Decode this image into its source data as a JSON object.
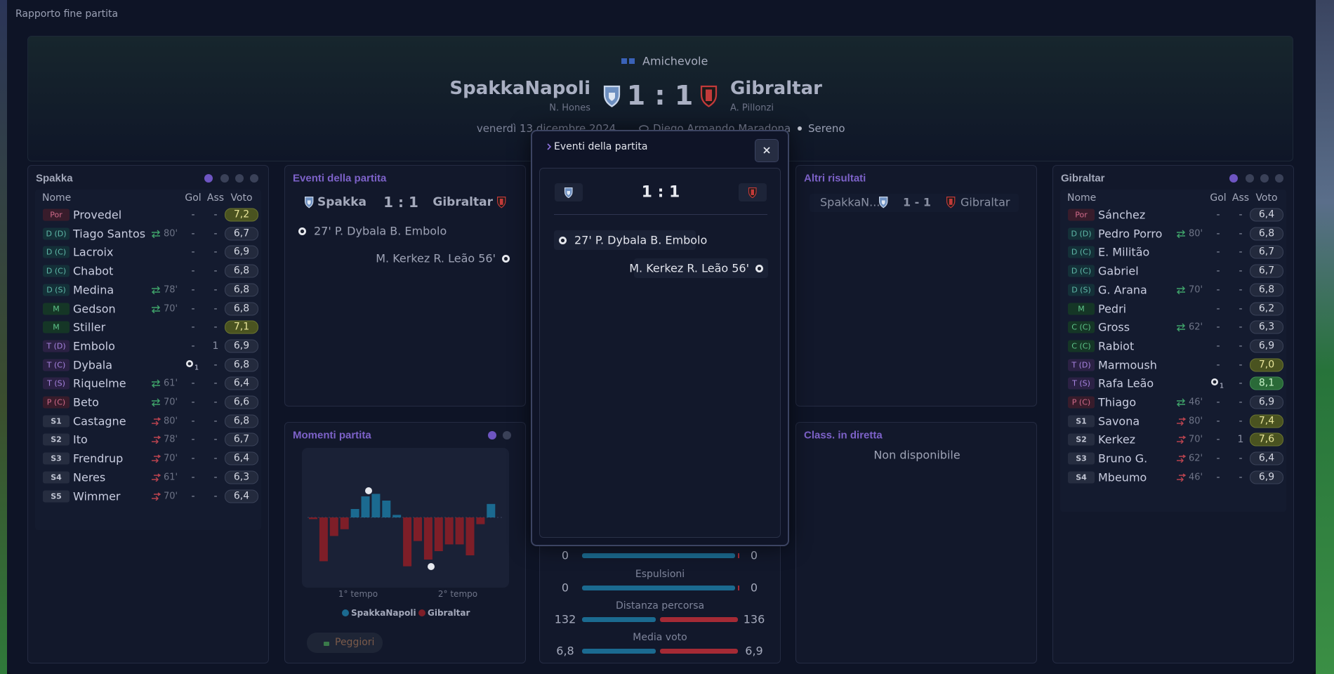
{
  "header": {
    "title": "Rapporto fine partita"
  },
  "match": {
    "competition": "Amichevole",
    "score": "1 : 1",
    "score_short": "1 - 1",
    "date": "venerdì 13 dicembre 2024",
    "stadium": "Diego Armando Maradona",
    "weather": "Sereno",
    "home": {
      "name": "SpakkaNapoli",
      "manager": "N. Hones",
      "short": "Spakka",
      "abbr": "SpakkaN..."
    },
    "away": {
      "name": "Gibraltar",
      "manager": "A. Pillonzi"
    }
  },
  "lineups": {
    "columns": [
      "Nome",
      "Gol",
      "Ass",
      "Voto"
    ],
    "teams": [
      {
        "title": "Spakka",
        "players": [
          {
            "pos": "Por",
            "name": "Provedel",
            "gol": "-",
            "ass": "-",
            "voto": "7,2"
          },
          {
            "pos": "D (D)",
            "name": "Tiago Santos",
            "sub": "80'",
            "gol": "-",
            "ass": "-",
            "voto": "6,7"
          },
          {
            "pos": "D (C)",
            "name": "Lacroix",
            "gol": "-",
            "ass": "-",
            "voto": "6,9"
          },
          {
            "pos": "D (C)",
            "name": "Chabot",
            "gol": "-",
            "ass": "-",
            "voto": "6,8"
          },
          {
            "pos": "D (S)",
            "name": "Medina",
            "sub": "78'",
            "gol": "-",
            "ass": "-",
            "voto": "6,8"
          },
          {
            "pos": "M",
            "name": "Gedson",
            "sub": "70'",
            "gol": "-",
            "ass": "-",
            "voto": "6,8"
          },
          {
            "pos": "M",
            "name": "Stiller",
            "gol": "-",
            "ass": "-",
            "voto": "7,1"
          },
          {
            "pos": "T (D)",
            "name": "Embolo",
            "gol": "-",
            "ass": "1",
            "voto": "6,9"
          },
          {
            "pos": "T (C)",
            "name": "Dybala",
            "gol": "1",
            "ass": "-",
            "voto": "6,8"
          },
          {
            "pos": "T (S)",
            "name": "Riquelme",
            "sub": "61'",
            "gol": "-",
            "ass": "-",
            "voto": "6,4"
          },
          {
            "pos": "P (C)",
            "name": "Beto",
            "sub": "70'",
            "gol": "-",
            "ass": "-",
            "voto": "6,6"
          },
          {
            "pos": "S1",
            "name": "Castagne",
            "sub": "80'",
            "gol": "-",
            "ass": "-",
            "voto": "6,8"
          },
          {
            "pos": "S2",
            "name": "Ito",
            "sub": "78'",
            "gol": "-",
            "ass": "-",
            "voto": "6,7"
          },
          {
            "pos": "S3",
            "name": "Frendrup",
            "sub": "70'",
            "gol": "-",
            "ass": "-",
            "voto": "6,4"
          },
          {
            "pos": "S4",
            "name": "Neres",
            "sub": "61'",
            "gol": "-",
            "ass": "-",
            "voto": "6,3"
          },
          {
            "pos": "S5",
            "name": "Wimmer",
            "sub": "70'",
            "gol": "-",
            "ass": "-",
            "voto": "6,4"
          }
        ]
      },
      {
        "title": "Gibraltar",
        "players": [
          {
            "pos": "Por",
            "name": "Sánchez",
            "gol": "-",
            "ass": "-",
            "voto": "6,4"
          },
          {
            "pos": "D (D)",
            "name": "Pedro Porro",
            "sub": "80'",
            "gol": "-",
            "ass": "-",
            "voto": "6,8"
          },
          {
            "pos": "D (C)",
            "name": "E. Militão",
            "gol": "-",
            "ass": "-",
            "voto": "6,7"
          },
          {
            "pos": "D (C)",
            "name": "Gabriel",
            "gol": "-",
            "ass": "-",
            "voto": "6,7"
          },
          {
            "pos": "D (S)",
            "name": "G. Arana",
            "sub": "70'",
            "gol": "-",
            "ass": "-",
            "voto": "6,8"
          },
          {
            "pos": "M",
            "name": "Pedri",
            "gol": "-",
            "ass": "-",
            "voto": "6,2"
          },
          {
            "pos": "C (C)",
            "name": "Gross",
            "sub": "62'",
            "gol": "-",
            "ass": "-",
            "voto": "6,3"
          },
          {
            "pos": "C (C)",
            "name": "Rabiot",
            "gol": "-",
            "ass": "-",
            "voto": "6,9"
          },
          {
            "pos": "T (D)",
            "name": "Marmoush",
            "gol": "-",
            "ass": "-",
            "voto": "7,0"
          },
          {
            "pos": "T (S)",
            "name": "Rafa Leão",
            "gol": "1",
            "ass": "-",
            "voto": "8,1"
          },
          {
            "pos": "P (C)",
            "name": "Thiago",
            "sub": "46'",
            "gol": "-",
            "ass": "-",
            "voto": "6,9"
          },
          {
            "pos": "S1",
            "name": "Savona",
            "sub": "80'",
            "gol": "-",
            "ass": "-",
            "voto": "7,4"
          },
          {
            "pos": "S2",
            "name": "Kerkez",
            "sub": "70'",
            "gol": "-",
            "ass": "1",
            "voto": "7,6"
          },
          {
            "pos": "S3",
            "name": "Bruno G.",
            "sub": "62'",
            "gol": "-",
            "ass": "-",
            "voto": "6,4"
          },
          {
            "pos": "S4",
            "name": "Mbeumo",
            "sub": "46'",
            "gol": "-",
            "ass": "-",
            "voto": "6,9"
          }
        ]
      }
    ]
  },
  "events": {
    "title": "Eventi della partita",
    "items": [
      {
        "text": "27' P. Dybala B. Embolo",
        "side": "home"
      },
      {
        "text": "M. Kerkez R. Leão 56'",
        "side": "away"
      }
    ]
  },
  "momentum": {
    "title": "Momenti partita",
    "values": [
      -2,
      -52,
      -22,
      -14,
      10,
      25,
      28,
      20,
      3,
      -58,
      -28,
      -50,
      -40,
      -32,
      -32,
      -45,
      -8,
      16
    ],
    "labels": [
      "1° tempo",
      "2° tempo"
    ],
    "legend": [
      "SpakkaNapoli",
      "Gibraltar"
    ],
    "button": "Peggiori"
  },
  "stats": {
    "rows": [
      {
        "home": "0",
        "away": "0"
      },
      {
        "label": "Espulsioni",
        "home": "0",
        "away": "0"
      },
      {
        "label": "Distanza percorsa",
        "home": "132",
        "away": "136"
      },
      {
        "label": "Media voto",
        "home": "6,8",
        "away": "6,9"
      }
    ]
  },
  "other_results": {
    "title": "Altri risultati"
  },
  "live_table": {
    "title": "Class. in diretta",
    "message": "Non disponibile"
  }
}
